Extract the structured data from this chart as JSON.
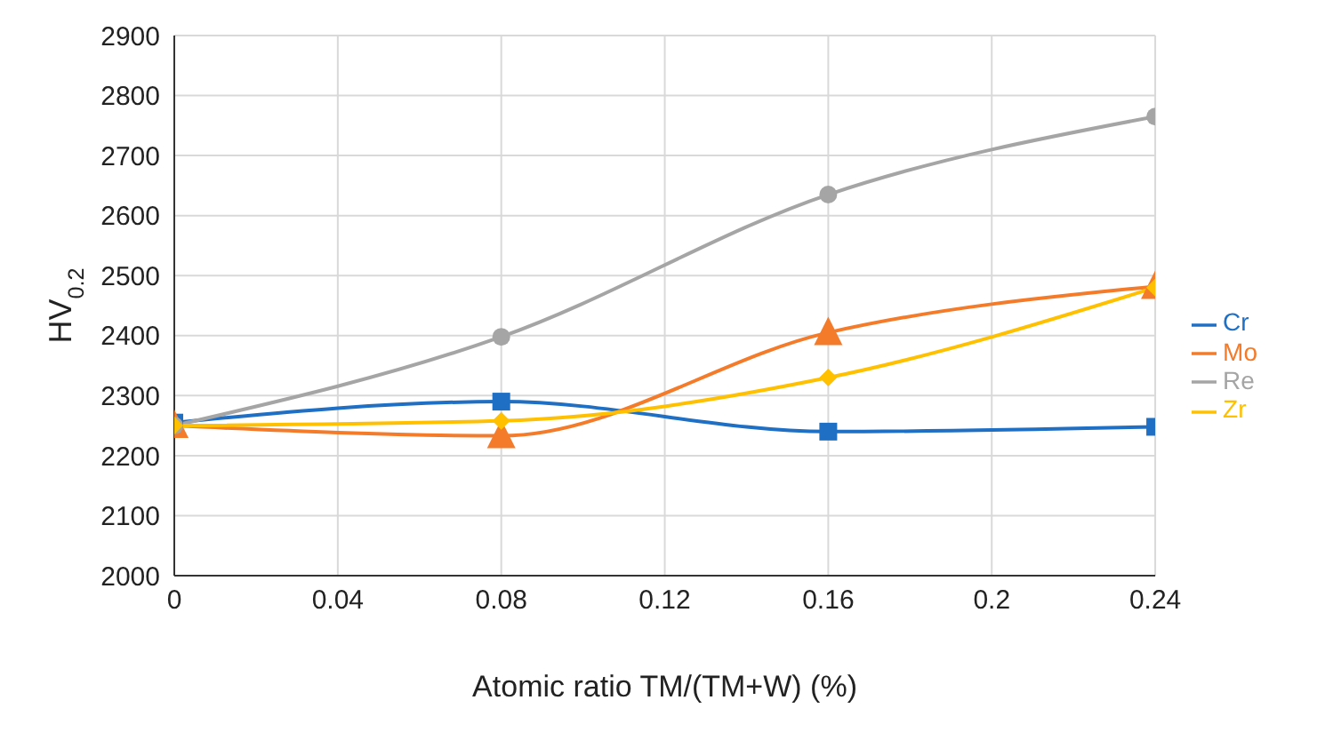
{
  "chart_data": {
    "type": "line",
    "xlabel": "Atomic ratio TM/(TM+W)  (%)",
    "ylabel": "HV$_{0.2}$",
    "x": [
      0,
      0.08,
      0.16,
      0.24
    ],
    "series": [
      {
        "name": "Cr",
        "color": "#1f6fc5",
        "marker": "square",
        "values": [
          2255,
          2290,
          2240,
          2248
        ]
      },
      {
        "name": "Mo",
        "color": "#f47b2a",
        "marker": "triangle",
        "values": [
          2250,
          2233,
          2405,
          2482
        ]
      },
      {
        "name": "Re",
        "color": "#a5a5a5",
        "marker": "circle",
        "values": [
          2250,
          2398,
          2635,
          2765
        ]
      },
      {
        "name": "Zr",
        "color": "#ffc000",
        "marker": "diamond",
        "values": [
          2250,
          2258,
          2330,
          2480
        ]
      }
    ],
    "xlim": [
      0,
      0.24
    ],
    "xticks": [
      0,
      0.04,
      0.08,
      0.12,
      0.16,
      0.2,
      0.24
    ],
    "ylim": [
      2000,
      2900
    ],
    "yticks": [
      2000,
      2100,
      2200,
      2300,
      2400,
      2500,
      2600,
      2700,
      2800,
      2900
    ],
    "grid": true,
    "legend": "right"
  }
}
